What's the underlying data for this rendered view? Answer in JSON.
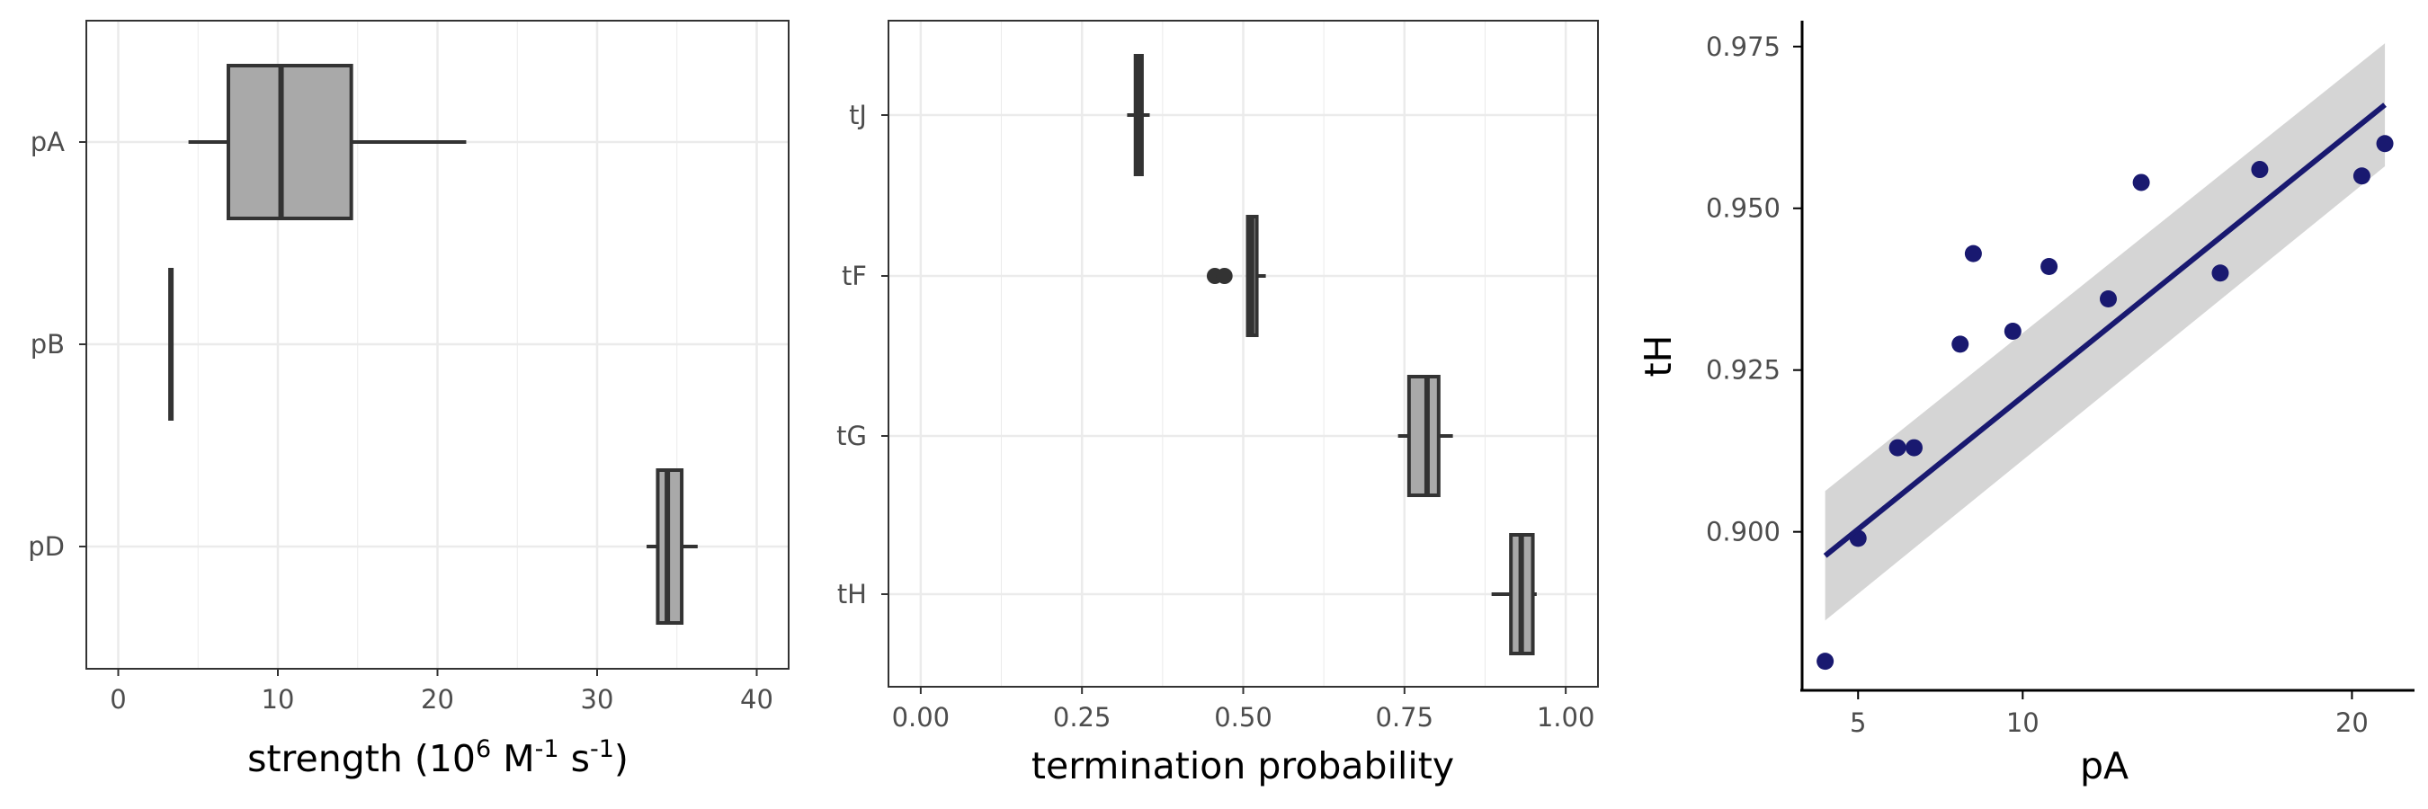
{
  "colors": {
    "box_fill": "#a9a9a9",
    "box_line": "#333333",
    "grid": "#ebebeb",
    "panel_border": "#333333",
    "fit_line": "#191970",
    "ci_band": "#d3d3d3",
    "point": "#191970"
  },
  "chart_data": [
    {
      "type": "box",
      "orientation": "horizontal",
      "xlabel": "strength",
      "xlabel_parts": [
        "strength (10",
        "6",
        " M",
        "-1",
        " s",
        "-1",
        ")"
      ],
      "xlim": [
        -2,
        42
      ],
      "xticks": [
        0,
        10,
        20,
        30,
        40
      ],
      "xtick_labels": [
        "0",
        "10",
        "20",
        "30",
        "40"
      ],
      "categories": [
        "pA",
        "pB",
        "pD"
      ],
      "boxes": [
        {
          "category": "pA",
          "whisker_low": 4.4,
          "q1": 6.9,
          "median": 10.2,
          "q3": 14.6,
          "whisker_high": 21.8,
          "outliers": []
        },
        {
          "category": "pB",
          "whisker_low": 3.3,
          "q1": 3.3,
          "median": 3.3,
          "q3": 3.3,
          "whisker_high": 3.3,
          "outliers": []
        },
        {
          "category": "pD",
          "whisker_low": 33.1,
          "q1": 33.8,
          "median": 34.4,
          "q3": 35.3,
          "whisker_high": 36.3,
          "outliers": []
        }
      ],
      "grid": true
    },
    {
      "type": "box",
      "orientation": "horizontal",
      "xlabel": "termination probability",
      "xlim": [
        -0.05,
        1.05
      ],
      "xticks": [
        0,
        0.25,
        0.5,
        0.75,
        1.0
      ],
      "xtick_labels": [
        "0.00",
        "0.25",
        "0.50",
        "0.75",
        "1.00"
      ],
      "categories": [
        "tJ",
        "tF",
        "tG",
        "tH"
      ],
      "boxes": [
        {
          "category": "tJ",
          "whisker_low": 0.32,
          "q1": 0.333,
          "median": 0.338,
          "q3": 0.343,
          "whisker_high": 0.355,
          "outliers": []
        },
        {
          "category": "tF",
          "whisker_low": 0.505,
          "q1": 0.507,
          "median": 0.513,
          "q3": 0.521,
          "whisker_high": 0.535,
          "outliers": [
            0.456,
            0.471
          ]
        },
        {
          "category": "tG",
          "whisker_low": 0.74,
          "q1": 0.757,
          "median": 0.785,
          "q3": 0.803,
          "whisker_high": 0.825,
          "outliers": []
        },
        {
          "category": "tH",
          "whisker_low": 0.885,
          "q1": 0.915,
          "median": 0.931,
          "q3": 0.949,
          "whisker_high": 0.955,
          "outliers": []
        }
      ],
      "grid": true
    },
    {
      "type": "scatter",
      "xlabel": "pA",
      "ylabel": "tH",
      "xlim": [
        3.3,
        21.9
      ],
      "ylim": [
        0.8755,
        0.979
      ],
      "xticks": [
        5,
        10,
        20
      ],
      "xtick_labels": [
        "5",
        "10",
        "20"
      ],
      "yticks": [
        0.9,
        0.925,
        0.95,
        0.975
      ],
      "ytick_labels": [
        "0.900",
        "0.925",
        "0.950",
        "0.975"
      ],
      "x": [
        4.0,
        5.0,
        6.2,
        6.7,
        8.1,
        8.5,
        9.7,
        10.8,
        12.6,
        13.6,
        16.0,
        17.2,
        20.3,
        21.0
      ],
      "y": [
        0.88,
        0.899,
        0.913,
        0.913,
        0.929,
        0.943,
        0.931,
        0.941,
        0.936,
        0.954,
        0.94,
        0.956,
        0.955,
        0.96
      ],
      "fit": {
        "method": "linear",
        "x": [
          4.0,
          21.0
        ],
        "y": [
          0.8963,
          0.966
        ],
        "band_low": [
          0.8863,
          0.9565
        ],
        "band_high": [
          0.9063,
          0.9755
        ]
      },
      "grid": false
    }
  ]
}
